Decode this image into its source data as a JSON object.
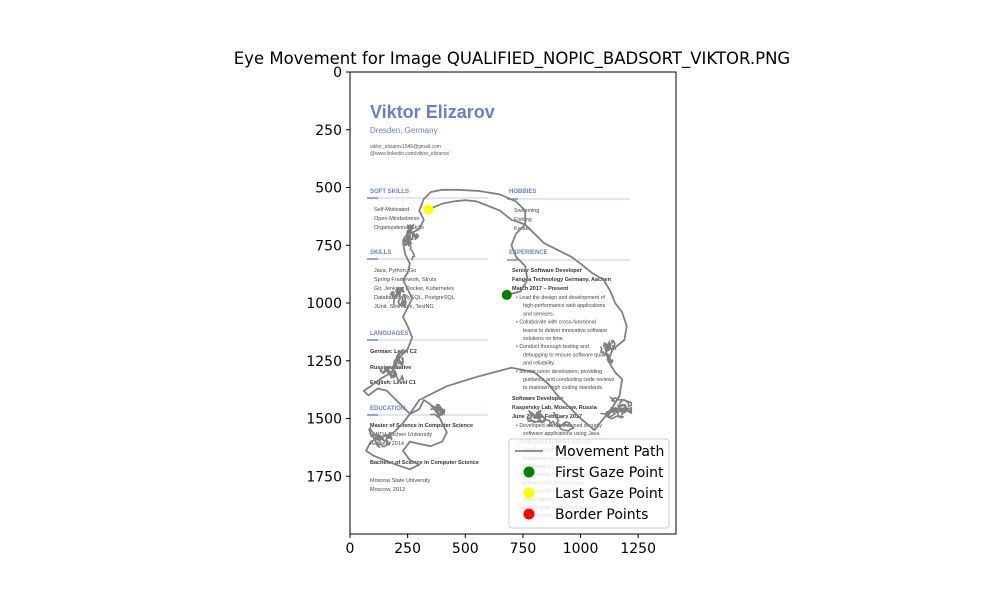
{
  "chart_data": {
    "type": "line",
    "title": "Eye Movement for Image QUALIFIED_NOPIC_BADSORT_VIKTOR.PNG",
    "xlim": [
      0,
      1414
    ],
    "ylim": [
      2000,
      0
    ],
    "x_ticks": [
      0,
      250,
      500,
      750,
      1000,
      1250
    ],
    "y_ticks": [
      0,
      250,
      500,
      750,
      1000,
      1250,
      1500,
      1750
    ],
    "grid": false,
    "legend_position": "lower-right",
    "legend": [
      {
        "label": "Movement Path",
        "kind": "line",
        "color": "#808080"
      },
      {
        "label": "First Gaze Point",
        "kind": "point",
        "color": "#008000"
      },
      {
        "label": "Last Gaze Point",
        "kind": "point",
        "color": "#ffff00"
      },
      {
        "label": "Border Points",
        "kind": "point",
        "color": "#ff0000"
      }
    ],
    "first_gaze": {
      "x": 680,
      "y": 965
    },
    "last_gaze": {
      "x": 340,
      "y": 595
    },
    "path": [
      [
        680,
        965
      ],
      [
        740,
        950
      ],
      [
        770,
        900
      ],
      [
        760,
        840
      ],
      [
        720,
        800
      ],
      [
        700,
        750
      ],
      [
        720,
        700
      ],
      [
        760,
        660
      ],
      [
        760,
        600
      ],
      [
        720,
        560
      ],
      [
        650,
        530
      ],
      [
        560,
        515
      ],
      [
        470,
        510
      ],
      [
        400,
        510
      ],
      [
        350,
        520
      ],
      [
        320,
        550
      ],
      [
        300,
        600
      ],
      [
        320,
        640
      ],
      [
        300,
        680
      ],
      [
        260,
        700
      ],
      [
        230,
        740
      ],
      [
        240,
        790
      ],
      [
        260,
        830
      ],
      [
        250,
        870
      ],
      [
        230,
        900
      ],
      [
        250,
        940
      ],
      [
        270,
        980
      ],
      [
        250,
        1020
      ],
      [
        230,
        1060
      ],
      [
        250,
        1100
      ],
      [
        270,
        1150
      ],
      [
        250,
        1200
      ],
      [
        220,
        1230
      ],
      [
        200,
        1260
      ],
      [
        180,
        1300
      ],
      [
        130,
        1330
      ],
      [
        90,
        1360
      ],
      [
        60,
        1380
      ],
      [
        80,
        1400
      ],
      [
        120,
        1370
      ],
      [
        160,
        1380
      ],
      [
        200,
        1420
      ],
      [
        230,
        1450
      ],
      [
        260,
        1480
      ],
      [
        300,
        1460
      ],
      [
        320,
        1420
      ],
      [
        350,
        1440
      ],
      [
        380,
        1480
      ],
      [
        400,
        1520
      ],
      [
        420,
        1560
      ],
      [
        400,
        1600
      ],
      [
        350,
        1620
      ],
      [
        300,
        1610
      ],
      [
        260,
        1600
      ],
      [
        230,
        1640
      ],
      [
        260,
        1680
      ],
      [
        300,
        1700
      ],
      [
        260,
        1720
      ],
      [
        200,
        1700
      ],
      [
        150,
        1680
      ],
      [
        100,
        1660
      ],
      [
        70,
        1640
      ],
      [
        90,
        1600
      ],
      [
        140,
        1580
      ],
      [
        190,
        1560
      ],
      [
        230,
        1520
      ],
      [
        260,
        1480
      ],
      [
        300,
        1420
      ],
      [
        420,
        1360
      ],
      [
        550,
        1320
      ],
      [
        700,
        1280
      ],
      [
        800,
        1300
      ],
      [
        860,
        1350
      ],
      [
        900,
        1400
      ],
      [
        950,
        1450
      ],
      [
        1000,
        1500
      ],
      [
        1060,
        1550
      ],
      [
        1100,
        1500
      ],
      [
        1140,
        1450
      ],
      [
        1170,
        1400
      ],
      [
        1180,
        1330
      ],
      [
        1150,
        1300
      ],
      [
        1120,
        1250
      ],
      [
        1140,
        1200
      ],
      [
        1190,
        1160
      ],
      [
        1200,
        1100
      ],
      [
        1180,
        1040
      ],
      [
        1150,
        1000
      ],
      [
        1130,
        950
      ],
      [
        1100,
        900
      ],
      [
        1050,
        870
      ],
      [
        1000,
        830
      ],
      [
        960,
        800
      ],
      [
        920,
        780
      ],
      [
        880,
        760
      ],
      [
        840,
        740
      ],
      [
        800,
        700
      ],
      [
        760,
        660
      ],
      [
        700,
        640
      ],
      [
        650,
        600
      ],
      [
        600,
        580
      ],
      [
        550,
        560
      ],
      [
        500,
        555
      ],
      [
        450,
        560
      ],
      [
        400,
        570
      ],
      [
        340,
        595
      ]
    ],
    "dense_regions": [
      {
        "cx": 150,
        "cy": 1280,
        "rx": 80,
        "ry": 110
      },
      {
        "cx": 120,
        "cy": 1600,
        "rx": 60,
        "ry": 70
      },
      {
        "cx": 340,
        "cy": 1490,
        "rx": 70,
        "ry": 50
      },
      {
        "cx": 1080,
        "cy": 1470,
        "rx": 140,
        "ry": 90
      },
      {
        "cx": 880,
        "cy": 1480,
        "rx": 110,
        "ry": 80
      },
      {
        "cx": 250,
        "cy": 760,
        "rx": 60,
        "ry": 100
      },
      {
        "cx": 200,
        "cy": 1000,
        "rx": 50,
        "ry": 90
      },
      {
        "cx": 1130,
        "cy": 1170,
        "rx": 50,
        "ry": 90
      }
    ]
  },
  "resume": {
    "name": "Viktor Elizarov",
    "location": "Dresden, Germany",
    "email": "viktor_elizarov1546@gmail.com",
    "linkedin": "@www.linkedin.com/viktor_elizarov/",
    "sections": {
      "soft_skills": {
        "title": "SOFT SKILLS",
        "items": [
          "Self-Motivated",
          "Open-Mindedness",
          "Organizational Skills"
        ]
      },
      "hobbies": {
        "title": "HOBBIES",
        "items": [
          "Swimming",
          "Fishing",
          "Karate"
        ]
      },
      "skills": {
        "title": "SKILLS",
        "items": [
          "Java, Python, Go",
          "Spring Framework, Struts",
          "Git, Jenkins, Docker, Kubernetes",
          "Databases: MySQL, PostgreSQL",
          "JUnit, Selenium, TestNG"
        ]
      },
      "languages": {
        "title": "LANGUAGES",
        "items": [
          "German: Level C2",
          "Russian: Native",
          "English: Level C1"
        ]
      },
      "education": {
        "title": "EDUCATION",
        "entries": [
          {
            "degree": "Master of Science in Computer Science",
            "school": "RWTH Aachen University",
            "place": "Aachen, 2014"
          },
          {
            "degree": "Bachelor of Science in Computer Science",
            "school": "Moscow State University",
            "place": "Moscow, 2012"
          }
        ]
      },
      "experience": {
        "title": "EXPERIENCE",
        "jobs": [
          {
            "role": "Senior Software Developer",
            "company": "Fangea Technology Germany, Aachen",
            "dates": "March 2017 – Present",
            "bullets": [
              "Lead the design and development of high-performance web applications and services.",
              "Collaborate with cross-functional teams to deliver innovative software solutions on time.",
              "Conduct thorough testing and debugging to ensure software quality and reliability.",
              "Mentor junior developers, providing guidance and conducting code reviews to maintain high coding standards."
            ]
          },
          {
            "role": "Software Developer",
            "company": "Kaspersky Lab, Moscow, Russia",
            "dates": "June 2012 – February 2017",
            "bullets": [
              "Developed and maintained security software applications using Java.",
              "Participated in the full software development lifecycle, from requirements gathering to deployment.",
              "Implemented new features and enhancements to existing functionalities to enhance product performance.",
              "Worked in an agile development environment."
            ]
          }
        ]
      }
    }
  }
}
